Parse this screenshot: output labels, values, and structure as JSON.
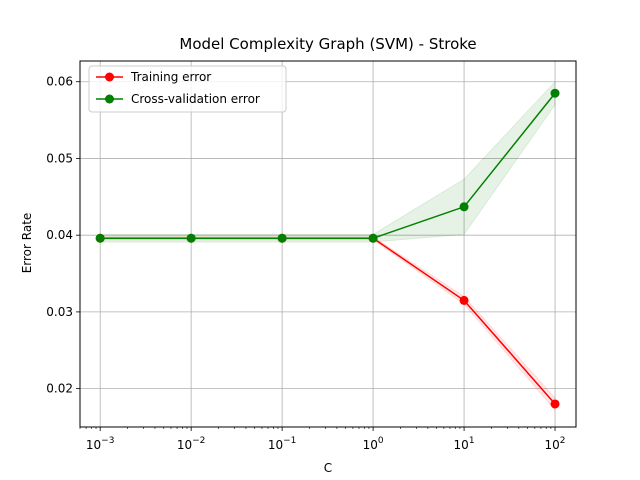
{
  "chart_data": {
    "type": "line",
    "title": "Model Complexity Graph (SVM) - Stroke",
    "xlabel": "C",
    "ylabel": "Error Rate",
    "xscale": "log",
    "x": [
      0.001,
      0.01,
      0.1,
      1,
      10,
      100
    ],
    "x_tick_labels": [
      {
        "base": "10",
        "exp": "−3"
      },
      {
        "base": "10",
        "exp": "−2"
      },
      {
        "base": "10",
        "exp": "−1"
      },
      {
        "base": "10",
        "exp": "0"
      },
      {
        "base": "10",
        "exp": "1"
      },
      {
        "base": "10",
        "exp": "2"
      }
    ],
    "y_ticks": [
      0.02,
      0.03,
      0.04,
      0.05,
      0.06
    ],
    "y_tick_labels": [
      "0.02",
      "0.03",
      "0.04",
      "0.05",
      "0.06"
    ],
    "xlim": [
      0.0006,
      170
    ],
    "ylim": [
      0.015,
      0.0627
    ],
    "grid": true,
    "legend_position": "top-left",
    "series": [
      {
        "name": "Training error",
        "color": "#ff0000",
        "band_color": "#ff0000",
        "values": [
          0.0396,
          0.0396,
          0.0396,
          0.0396,
          0.0315,
          0.018
        ],
        "band_low": [
          0.0394,
          0.0394,
          0.0394,
          0.0394,
          0.031,
          0.0172
        ],
        "band_high": [
          0.0398,
          0.0398,
          0.0398,
          0.0398,
          0.032,
          0.0188
        ]
      },
      {
        "name": "Cross-validation error",
        "color": "#008000",
        "band_color": "#008000",
        "values": [
          0.0396,
          0.0396,
          0.0396,
          0.0396,
          0.0437,
          0.0585
        ],
        "band_low": [
          0.0391,
          0.0391,
          0.0391,
          0.0391,
          0.0401,
          0.057
        ],
        "band_high": [
          0.0401,
          0.0401,
          0.0401,
          0.0401,
          0.0473,
          0.06
        ]
      }
    ]
  }
}
